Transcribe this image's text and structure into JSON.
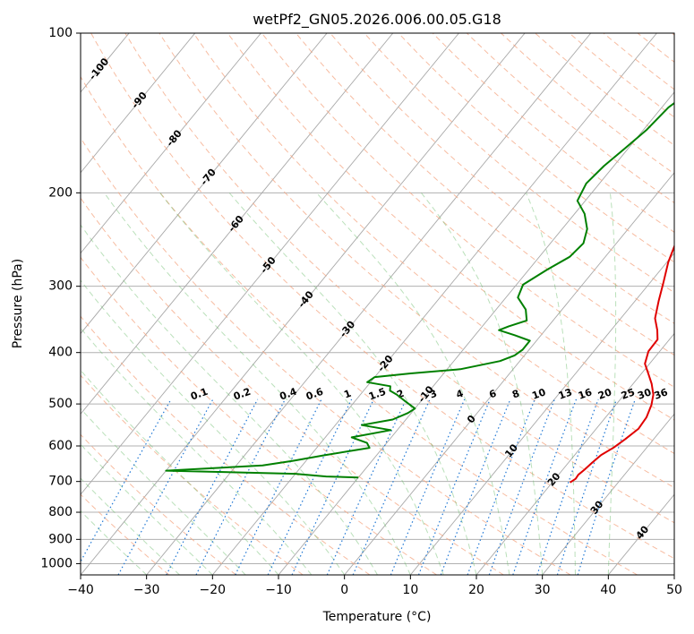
{
  "chart_data": {
    "type": "line",
    "diagram": "skew-t log-p",
    "title": "wetPf2_GN05.2026.006.00.05.G18",
    "xlabel": "Temperature (°C)",
    "ylabel": "Pressure (hPa)",
    "xlim": [
      -40,
      50
    ],
    "ylim": [
      1050,
      100
    ],
    "y_scale": "log",
    "grid": true,
    "x_ticks": [
      "−40",
      "−30",
      "−20",
      "−10",
      "0",
      "10",
      "20",
      "30",
      "40",
      "50"
    ],
    "y_ticks": [
      {
        "p": 100,
        "label": "100"
      },
      {
        "p": 200,
        "label": "200"
      },
      {
        "p": 300,
        "label": "300"
      },
      {
        "p": 400,
        "label": "400"
      },
      {
        "p": 500,
        "label": "500"
      },
      {
        "p": 600,
        "label": "600"
      },
      {
        "p": 700,
        "label": "700"
      },
      {
        "p": 800,
        "label": "800"
      },
      {
        "p": 900,
        "label": "900"
      },
      {
        "p": 1000,
        "label": "1000"
      }
    ],
    "isotherm_labels": [
      {
        "t": -100,
        "p": 117,
        "label": "-100"
      },
      {
        "t": -90,
        "p": 134,
        "label": "-90"
      },
      {
        "t": -80,
        "p": 158,
        "label": "-80"
      },
      {
        "t": -70,
        "p": 187,
        "label": "-70"
      },
      {
        "t": -60,
        "p": 229,
        "label": "-60"
      },
      {
        "t": -50,
        "p": 274,
        "label": "-50"
      },
      {
        "t": -40,
        "p": 318,
        "label": "-40"
      },
      {
        "t": -30,
        "p": 362,
        "label": "-30"
      },
      {
        "t": -20,
        "p": 420,
        "label": "-20"
      },
      {
        "t": -10,
        "p": 480,
        "label": "-10"
      },
      {
        "t": 0,
        "p": 535,
        "label": "0"
      },
      {
        "t": 10,
        "p": 614,
        "label": "10"
      },
      {
        "t": 20,
        "p": 695,
        "label": "20"
      },
      {
        "t": 30,
        "p": 785,
        "label": "30"
      },
      {
        "t": 40,
        "p": 875,
        "label": "40"
      }
    ],
    "mixing_ratio_labels": [
      "0.1",
      "0.2",
      "0.4",
      "0.6",
      "1",
      "1.5",
      "2",
      "3",
      "4",
      "6",
      "8",
      "10",
      "13",
      "16",
      "20",
      "25",
      "30",
      "36"
    ],
    "mixing_ratio_label_x": [
      -22,
      -15.5,
      -8.5,
      -4.5,
      0.5,
      5,
      8.5,
      13.5,
      17.5,
      22.5,
      26,
      29.5,
      33.5,
      36.5,
      39.5,
      43,
      45.5,
      48
    ],
    "series": [
      {
        "role": "temperature",
        "color": "#e00000",
        "points": [
          [
            -0.5,
            100
          ],
          [
            0.5,
            112
          ],
          [
            1.4,
            124
          ],
          [
            2,
            135
          ],
          [
            3,
            146
          ],
          [
            4.8,
            162
          ],
          [
            6,
            180
          ],
          [
            6.6,
            195
          ],
          [
            7,
            215
          ],
          [
            8.6,
            243
          ],
          [
            10.2,
            270
          ],
          [
            12,
            295
          ],
          [
            13.6,
            320
          ],
          [
            15.2,
            345
          ],
          [
            17,
            363
          ],
          [
            18.2,
            378
          ],
          [
            18.3,
            398
          ],
          [
            19.3,
            420
          ],
          [
            21.2,
            440
          ],
          [
            22.8,
            458
          ],
          [
            24.4,
            480
          ],
          [
            25.4,
            502
          ],
          [
            26.2,
            530
          ],
          [
            26.4,
            557
          ],
          [
            25.7,
            582
          ],
          [
            25,
            604
          ],
          [
            24,
            624
          ],
          [
            23.6,
            645
          ],
          [
            23.3,
            665
          ],
          [
            23,
            680
          ],
          [
            23.1,
            692
          ],
          [
            22.7,
            703
          ]
        ]
      },
      {
        "role": "dewpoint",
        "color": "#008000",
        "points": [
          [
            -1.2,
            100
          ],
          [
            -2,
            110
          ],
          [
            -3.5,
            120
          ],
          [
            -6,
            127
          ],
          [
            -8,
            131
          ],
          [
            -9,
            138
          ],
          [
            -9.5,
            152
          ],
          [
            -10.5,
            165
          ],
          [
            -11.5,
            178
          ],
          [
            -12,
            192
          ],
          [
            -11.2,
            207
          ],
          [
            -8.5,
            219
          ],
          [
            -6.2,
            234
          ],
          [
            -5,
            249
          ],
          [
            -5.4,
            264
          ],
          [
            -7.2,
            279
          ],
          [
            -9,
            298
          ],
          [
            -8.2,
            315
          ],
          [
            -5.5,
            332
          ],
          [
            -4,
            348
          ],
          [
            -6,
            357
          ],
          [
            -7,
            363
          ],
          [
            -4,
            371
          ],
          [
            -1,
            380
          ],
          [
            -1,
            395
          ],
          [
            -1.5,
            405
          ],
          [
            -3,
            415
          ],
          [
            -8,
            430
          ],
          [
            -15,
            438
          ],
          [
            -20,
            445
          ],
          [
            -20.5,
            455
          ],
          [
            -16.5,
            463
          ],
          [
            -16,
            472
          ],
          [
            -14.5,
            480
          ],
          [
            -13,
            490
          ],
          [
            -11.5,
            500
          ],
          [
            -10,
            510
          ],
          [
            -10.5,
            520
          ],
          [
            -12,
            535
          ],
          [
            -16,
            548
          ],
          [
            -11,
            560
          ],
          [
            -16,
            578
          ],
          [
            -13,
            592
          ],
          [
            -12,
            605
          ],
          [
            -18,
            625
          ],
          [
            -22,
            640
          ],
          [
            -26,
            653
          ],
          [
            -40,
            668
          ],
          [
            -20,
            677
          ],
          [
            -15,
            685
          ],
          [
            -10,
            688
          ]
        ]
      }
    ]
  }
}
